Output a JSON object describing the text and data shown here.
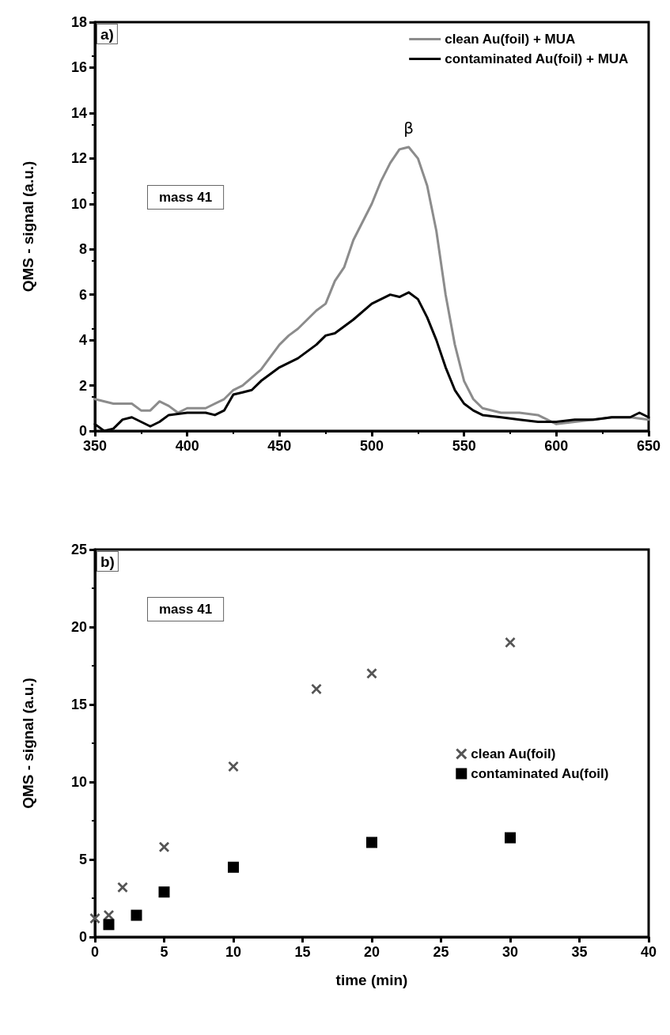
{
  "chart_data": [
    {
      "type": "line",
      "ylabel": "QMS - signal (a.u.)",
      "xlim": [
        350,
        650
      ],
      "xticks": [
        350,
        400,
        450,
        500,
        550,
        600,
        650
      ],
      "ylim": [
        0,
        18
      ],
      "yticks": [
        0,
        2,
        4,
        6,
        8,
        10,
        12,
        14,
        16,
        18
      ],
      "grid": false,
      "legend": "top right",
      "marker": "none",
      "line_style": "solid",
      "annotations": [
        "a)",
        "mass 41",
        {
          "text": "β",
          "x": 520,
          "y": 12.5
        }
      ],
      "series": [
        {
          "name": "clean Au(foil) + MUA",
          "color": "#8c8c8c",
          "x": [
            350,
            360,
            370,
            375,
            380,
            385,
            390,
            395,
            400,
            410,
            420,
            425,
            430,
            440,
            450,
            455,
            460,
            470,
            475,
            480,
            485,
            490,
            495,
            500,
            505,
            510,
            515,
            520,
            525,
            530,
            535,
            540,
            545,
            550,
            555,
            560,
            570,
            580,
            590,
            600,
            610,
            620,
            630,
            640,
            650
          ],
          "values": [
            1.4,
            1.2,
            1.2,
            0.9,
            0.9,
            1.3,
            1.1,
            0.8,
            1.0,
            1.0,
            1.4,
            1.8,
            2.0,
            2.7,
            3.8,
            4.2,
            4.5,
            5.3,
            5.6,
            6.6,
            7.2,
            8.4,
            9.2,
            10.0,
            11.0,
            11.8,
            12.4,
            12.5,
            12.0,
            10.8,
            8.8,
            6.0,
            3.8,
            2.2,
            1.4,
            1.0,
            0.8,
            0.8,
            0.7,
            0.3,
            0.4,
            0.5,
            0.6,
            0.6,
            0.5
          ]
        },
        {
          "name": "contaminated Au(foil) + MUA",
          "color": "#000000",
          "x": [
            350,
            355,
            360,
            365,
            370,
            375,
            380,
            385,
            390,
            400,
            410,
            415,
            420,
            425,
            430,
            435,
            440,
            450,
            460,
            470,
            475,
            480,
            490,
            500,
            505,
            510,
            515,
            520,
            525,
            530,
            535,
            540,
            545,
            550,
            555,
            560,
            570,
            580,
            590,
            600,
            610,
            620,
            630,
            640,
            645,
            650
          ],
          "values": [
            0.3,
            0.0,
            0.1,
            0.5,
            0.6,
            0.4,
            0.2,
            0.4,
            0.7,
            0.8,
            0.8,
            0.7,
            0.9,
            1.6,
            1.7,
            1.8,
            2.2,
            2.8,
            3.2,
            3.8,
            4.2,
            4.3,
            4.9,
            5.6,
            5.8,
            6.0,
            5.9,
            6.1,
            5.8,
            5.0,
            4.0,
            2.8,
            1.8,
            1.2,
            0.9,
            0.7,
            0.6,
            0.5,
            0.4,
            0.4,
            0.5,
            0.5,
            0.6,
            0.6,
            0.8,
            0.6
          ]
        }
      ]
    },
    {
      "type": "scatter",
      "xlabel": "time (min)",
      "ylabel": "QMS - signal (a.u.)",
      "xlim": [
        0,
        40
      ],
      "xticks": [
        0,
        5,
        10,
        15,
        20,
        25,
        30,
        35,
        40
      ],
      "ylim": [
        0,
        25
      ],
      "yticks": [
        0,
        5,
        10,
        15,
        20,
        25
      ],
      "grid": false,
      "legend": "right",
      "annotations": [
        "b)",
        "mass 41"
      ],
      "series": [
        {
          "name": "clean Au(foil)",
          "color": "#555555",
          "marker": "cross",
          "x": [
            0,
            1,
            2,
            5,
            10,
            16,
            20,
            30
          ],
          "values": [
            1.2,
            1.4,
            3.2,
            5.8,
            11,
            16,
            17,
            19
          ]
        },
        {
          "name": "contaminated Au(foil)",
          "color": "#000000",
          "marker": "square",
          "x": [
            1,
            3,
            5,
            10,
            20,
            30
          ],
          "values": [
            0.8,
            1.4,
            2.9,
            4.5,
            6.1,
            6.4
          ]
        }
      ]
    }
  ]
}
